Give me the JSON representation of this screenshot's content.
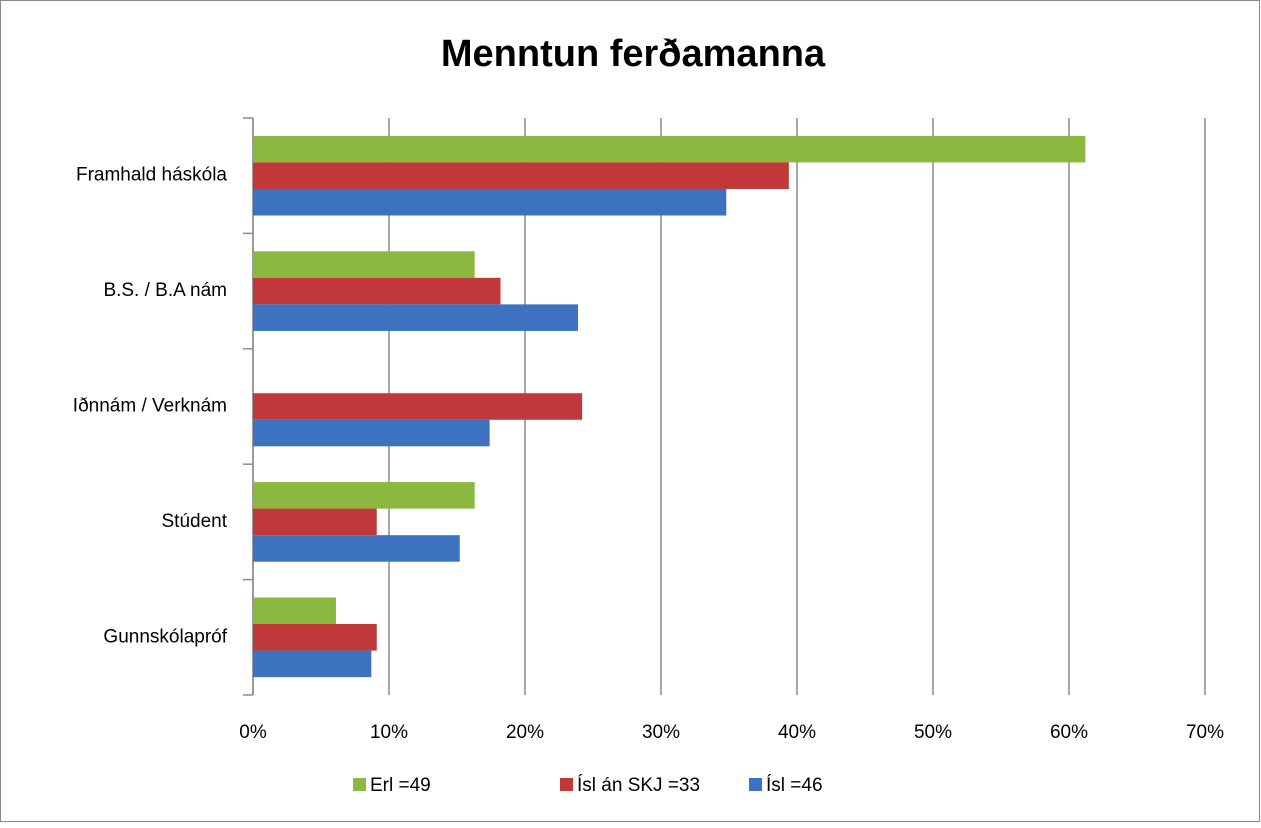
{
  "chart_data": {
    "type": "hbar",
    "title": "Menntun ferðamanna",
    "categories": [
      "Framhald háskóla",
      "B.S. / B.A nám",
      "Iðnnám / Verknám",
      "Stúdent",
      "Gunnskólapróf"
    ],
    "series": [
      {
        "name": "Erl =49",
        "color": "#8db83f",
        "values": [
          61.2,
          16.3,
          0,
          16.3,
          6.1
        ]
      },
      {
        "name": "Ísl án SKJ =33",
        "color": "#c0383a",
        "values": [
          39.4,
          18.2,
          24.2,
          9.1,
          9.1
        ]
      },
      {
        "name": "Ísl =46",
        "color": "#3c72c0",
        "values": [
          34.8,
          23.9,
          17.4,
          15.2,
          8.7
        ]
      }
    ],
    "xlim": [
      0,
      70
    ],
    "xticks": [
      {
        "value": 0,
        "label": "0%"
      },
      {
        "value": 10,
        "label": "10%"
      },
      {
        "value": 20,
        "label": "20%"
      },
      {
        "value": 30,
        "label": "30%"
      },
      {
        "value": 40,
        "label": "40%"
      },
      {
        "value": 50,
        "label": "50%"
      },
      {
        "value": 60,
        "label": "60%"
      },
      {
        "value": 70,
        "label": "70%"
      }
    ],
    "grid": true,
    "legend": "bottom"
  }
}
